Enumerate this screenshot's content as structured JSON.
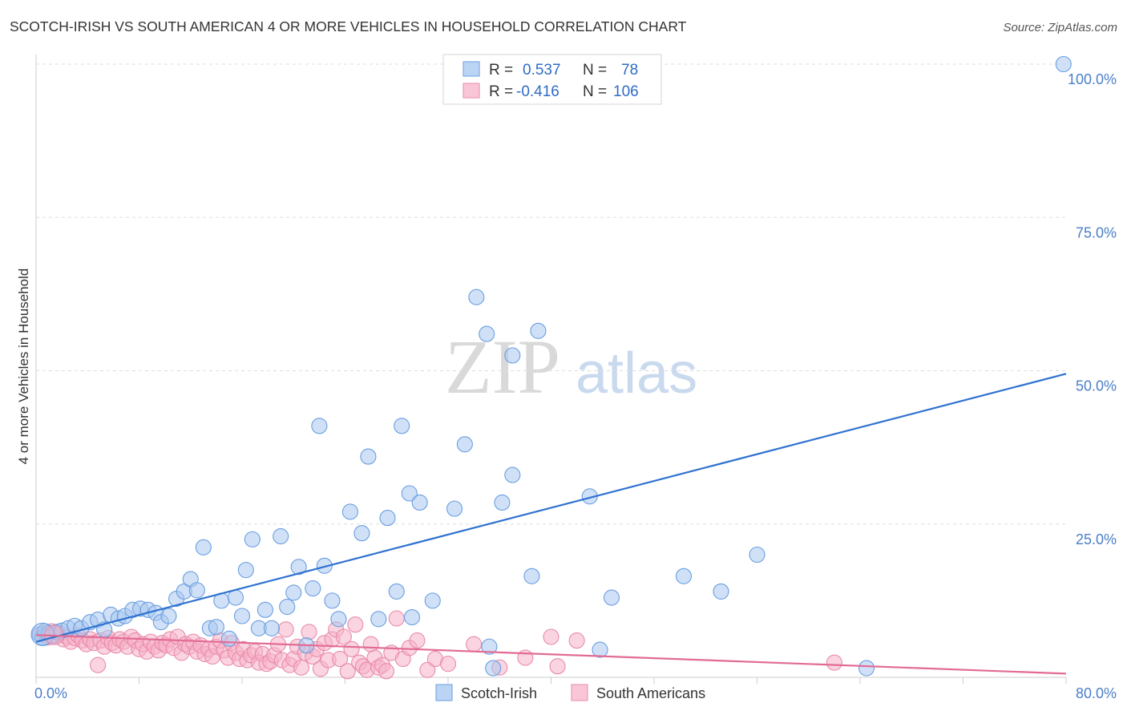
{
  "title": "SCOTCH-IRISH VS SOUTH AMERICAN 4 OR MORE VEHICLES IN HOUSEHOLD CORRELATION CHART",
  "source": "Source: ZipAtlas.com",
  "watermark": {
    "zip": "ZIP",
    "atlas": "atlas"
  },
  "colors": {
    "blue_fill": "#a9c8f0",
    "blue_stroke": "#6a9ee0",
    "blue_line": "#2f72d0",
    "pink_fill": "#f5b3c8",
    "pink_stroke": "#e98aa9",
    "pink_line": "#e26b95",
    "grid": "#dddddd",
    "tick_text": "#4a7fc9"
  },
  "legend": {
    "rows": [
      {
        "r_label": "R =",
        "r_value": "0.537",
        "n_label": "N =",
        "n_value": "78"
      },
      {
        "r_label": "R =",
        "r_value": "-0.416",
        "n_label": "N =",
        "n_value": "106"
      }
    ]
  },
  "chart_data": {
    "type": "scatter",
    "title": "SCOTCH-IRISH VS SOUTH AMERICAN 4 OR MORE VEHICLES IN HOUSEHOLD CORRELATION CHART",
    "xlabel": "",
    "ylabel": "4 or more Vehicles in Household",
    "xlim": [
      0,
      80
    ],
    "ylim": [
      0,
      100
    ],
    "x_tick_labels": [
      "0.0%",
      "80.0%"
    ],
    "y_ticks": [
      25,
      50,
      75,
      100
    ],
    "y_tick_labels": [
      "25.0%",
      "50.0%",
      "75.0%",
      "100.0%"
    ],
    "grid": true,
    "series": [
      {
        "name": "Scotch-Irish",
        "r": 0.537,
        "n": 78,
        "trend": [
          [
            0,
            5.8
          ],
          [
            80,
            49.5
          ]
        ],
        "points": [
          [
            0.3,
            7.0
          ],
          [
            0.5,
            6.5
          ],
          [
            0.7,
            7.5
          ],
          [
            1.0,
            7.2
          ],
          [
            1.3,
            6.8
          ],
          [
            1.6,
            7.4
          ],
          [
            2.0,
            7.6
          ],
          [
            2.5,
            8.0
          ],
          [
            3.0,
            8.4
          ],
          [
            3.5,
            8.0
          ],
          [
            4.2,
            9.0
          ],
          [
            4.8,
            9.4
          ],
          [
            5.3,
            7.8
          ],
          [
            5.8,
            10.2
          ],
          [
            6.4,
            9.6
          ],
          [
            6.9,
            10.0
          ],
          [
            7.5,
            11.0
          ],
          [
            8.1,
            11.2
          ],
          [
            8.7,
            11.0
          ],
          [
            9.3,
            10.5
          ],
          [
            9.7,
            9.0
          ],
          [
            10.3,
            10.0
          ],
          [
            10.9,
            12.8
          ],
          [
            11.5,
            14.0
          ],
          [
            12.0,
            16.0
          ],
          [
            12.5,
            14.2
          ],
          [
            13.0,
            21.2
          ],
          [
            13.5,
            8.0
          ],
          [
            14.0,
            8.2
          ],
          [
            14.4,
            12.5
          ],
          [
            15.0,
            6.3
          ],
          [
            15.5,
            13.0
          ],
          [
            16.0,
            10.0
          ],
          [
            16.3,
            17.5
          ],
          [
            16.8,
            22.5
          ],
          [
            17.3,
            8.0
          ],
          [
            17.8,
            11.0
          ],
          [
            18.3,
            8.0
          ],
          [
            19.0,
            23.0
          ],
          [
            19.5,
            11.5
          ],
          [
            20.0,
            13.8
          ],
          [
            20.4,
            18.0
          ],
          [
            21.0,
            5.2
          ],
          [
            21.5,
            14.5
          ],
          [
            22.0,
            41.0
          ],
          [
            22.4,
            18.2
          ],
          [
            23.0,
            12.5
          ],
          [
            23.5,
            9.5
          ],
          [
            24.4,
            27.0
          ],
          [
            25.3,
            23.5
          ],
          [
            25.8,
            36.0
          ],
          [
            26.6,
            9.5
          ],
          [
            27.3,
            26.0
          ],
          [
            28.0,
            14.0
          ],
          [
            28.4,
            41.0
          ],
          [
            29.0,
            30.0
          ],
          [
            29.2,
            9.8
          ],
          [
            29.8,
            28.5
          ],
          [
            30.8,
            12.5
          ],
          [
            32.5,
            27.5
          ],
          [
            33.3,
            38.0
          ],
          [
            34.2,
            62.0
          ],
          [
            35.0,
            56.0
          ],
          [
            35.2,
            5.0
          ],
          [
            35.5,
            1.5
          ],
          [
            36.2,
            28.5
          ],
          [
            37.0,
            33.0
          ],
          [
            37.0,
            52.5
          ],
          [
            38.5,
            16.5
          ],
          [
            39.0,
            56.5
          ],
          [
            43.0,
            29.5
          ],
          [
            43.8,
            4.5
          ],
          [
            44.7,
            13.0
          ],
          [
            50.3,
            16.5
          ],
          [
            53.2,
            14.0
          ],
          [
            56.0,
            20.0
          ],
          [
            64.5,
            1.5
          ],
          [
            79.8,
            100.0
          ]
        ]
      },
      {
        "name": "South Americans",
        "r": -0.416,
        "n": 106,
        "trend": [
          [
            0,
            6.9
          ],
          [
            80,
            0.6
          ]
        ],
        "points": [
          [
            0.3,
            7.0
          ],
          [
            0.6,
            7.2
          ],
          [
            0.9,
            6.5
          ],
          [
            1.2,
            7.5
          ],
          [
            1.5,
            6.8
          ],
          [
            1.8,
            7.2
          ],
          [
            2.1,
            6.2
          ],
          [
            2.4,
            6.6
          ],
          [
            2.7,
            5.8
          ],
          [
            3.0,
            6.4
          ],
          [
            3.3,
            6.8
          ],
          [
            3.6,
            6.0
          ],
          [
            3.9,
            5.4
          ],
          [
            4.2,
            6.2
          ],
          [
            4.5,
            5.6
          ],
          [
            4.8,
            2.0
          ],
          [
            5.0,
            6.0
          ],
          [
            5.3,
            5.0
          ],
          [
            5.6,
            6.4
          ],
          [
            5.9,
            5.6
          ],
          [
            6.2,
            5.2
          ],
          [
            6.5,
            6.2
          ],
          [
            6.8,
            5.8
          ],
          [
            7.1,
            5.0
          ],
          [
            7.4,
            6.6
          ],
          [
            7.7,
            6.0
          ],
          [
            8.0,
            4.6
          ],
          [
            8.3,
            5.4
          ],
          [
            8.6,
            4.2
          ],
          [
            8.9,
            5.8
          ],
          [
            9.2,
            5.0
          ],
          [
            9.5,
            4.4
          ],
          [
            9.8,
            5.6
          ],
          [
            10.1,
            5.2
          ],
          [
            10.4,
            6.2
          ],
          [
            10.7,
            4.8
          ],
          [
            11.0,
            6.6
          ],
          [
            11.3,
            4.0
          ],
          [
            11.6,
            5.4
          ],
          [
            11.9,
            5.0
          ],
          [
            12.2,
            5.8
          ],
          [
            12.5,
            4.2
          ],
          [
            12.8,
            5.2
          ],
          [
            13.1,
            3.8
          ],
          [
            13.4,
            4.6
          ],
          [
            13.7,
            3.4
          ],
          [
            14.0,
            5.0
          ],
          [
            14.3,
            6.0
          ],
          [
            14.6,
            4.4
          ],
          [
            14.9,
            3.2
          ],
          [
            15.2,
            5.6
          ],
          [
            15.5,
            4.0
          ],
          [
            15.8,
            3.0
          ],
          [
            16.1,
            4.6
          ],
          [
            16.4,
            2.8
          ],
          [
            16.7,
            3.6
          ],
          [
            17.0,
            4.2
          ],
          [
            17.3,
            2.4
          ],
          [
            17.6,
            3.8
          ],
          [
            17.9,
            2.2
          ],
          [
            18.2,
            2.6
          ],
          [
            18.5,
            3.6
          ],
          [
            18.8,
            5.4
          ],
          [
            19.1,
            2.8
          ],
          [
            19.4,
            7.8
          ],
          [
            19.7,
            2.0
          ],
          [
            20.0,
            3.0
          ],
          [
            20.3,
            5.0
          ],
          [
            20.6,
            1.6
          ],
          [
            20.9,
            4.0
          ],
          [
            21.2,
            7.4
          ],
          [
            21.5,
            3.4
          ],
          [
            21.8,
            4.6
          ],
          [
            22.1,
            1.4
          ],
          [
            22.4,
            5.6
          ],
          [
            22.7,
            2.8
          ],
          [
            23.0,
            6.2
          ],
          [
            23.3,
            7.8
          ],
          [
            23.6,
            3.0
          ],
          [
            23.9,
            6.6
          ],
          [
            24.2,
            1.0
          ],
          [
            24.5,
            4.6
          ],
          [
            24.8,
            8.6
          ],
          [
            25.1,
            2.4
          ],
          [
            25.4,
            1.8
          ],
          [
            25.7,
            1.2
          ],
          [
            26.0,
            5.4
          ],
          [
            26.3,
            3.2
          ],
          [
            26.6,
            1.6
          ],
          [
            26.9,
            2.0
          ],
          [
            27.2,
            1.0
          ],
          [
            27.6,
            4.0
          ],
          [
            28.0,
            9.6
          ],
          [
            28.5,
            3.0
          ],
          [
            29.0,
            4.8
          ],
          [
            29.6,
            6.0
          ],
          [
            30.4,
            1.2
          ],
          [
            31.0,
            3.0
          ],
          [
            32.0,
            2.2
          ],
          [
            34.0,
            5.4
          ],
          [
            36.0,
            1.6
          ],
          [
            38.0,
            3.2
          ],
          [
            40.0,
            6.6
          ],
          [
            42.0,
            6.0
          ],
          [
            62.0,
            2.4
          ],
          [
            40.5,
            1.8
          ]
        ]
      }
    ]
  }
}
